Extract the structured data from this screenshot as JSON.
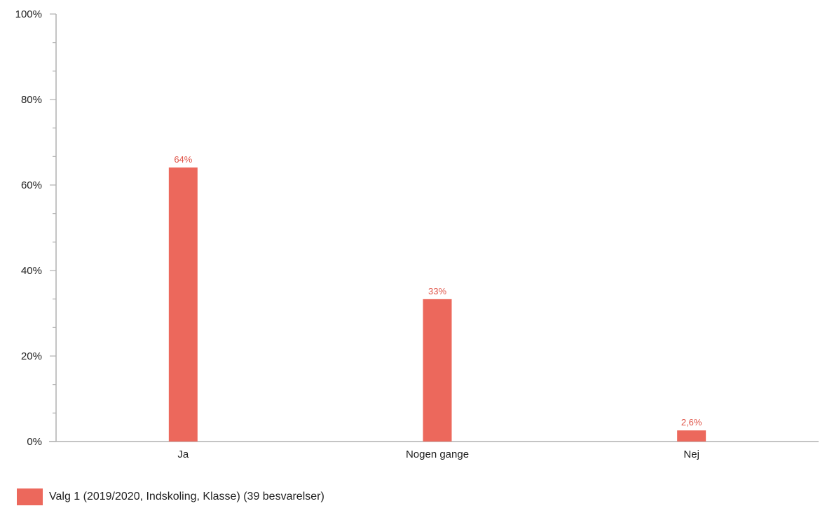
{
  "chart_data": {
    "type": "bar",
    "categories": [
      "Ja",
      "Nogen gange",
      "Nej"
    ],
    "series": [
      {
        "name": "Valg 1 (2019/2020, Indskoling, Klasse) (39 besvarelser)",
        "values": [
          64.1,
          33.3,
          2.6
        ],
        "labels": [
          "64%",
          "33%",
          "2,6%"
        ],
        "color": "#ec685c"
      }
    ],
    "ylim": [
      0,
      100
    ],
    "yticks": [
      0,
      20,
      40,
      60,
      80,
      100
    ],
    "ytick_labels": [
      "0%",
      "20%",
      "40%",
      "60%",
      "80%",
      "100%"
    ],
    "minor_ticks_per_major": 2,
    "grid": false,
    "legend_position": "bottom-left",
    "axis_color": "#b0b0b0",
    "label_color": "#e0564a"
  }
}
